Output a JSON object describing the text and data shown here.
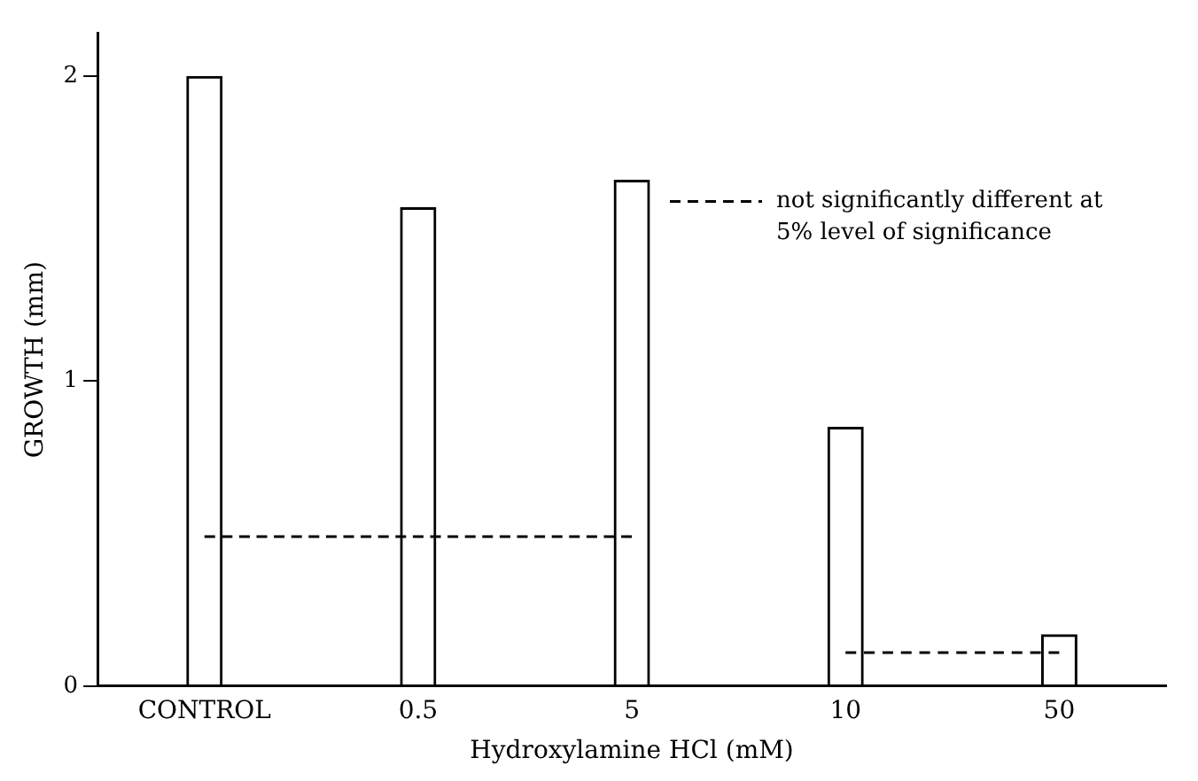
{
  "chart_data": {
    "type": "bar",
    "xlabel": "Hydroxylamine HCl (mM)",
    "ylabel": "GROWTH (mm)",
    "categories": [
      "CONTROL",
      "0.5",
      "5",
      "10",
      "50"
    ],
    "series": [
      {
        "color": "#000000",
        "values": [
          2.0,
          1.57,
          1.66,
          0.85,
          0.17
        ]
      },
      {
        "type": "line",
        "name": "not significantly different at 5% level of significance",
        "color": "#000000",
        "line_style": "dashed",
        "values": [
          0.49,
          0.49,
          0.49,
          null,
          null
        ]
      },
      {
        "type": "line",
        "color": "#000000",
        "line_style": "dashed",
        "values": [
          null,
          null,
          null,
          0.11,
          0.11
        ]
      }
    ],
    "ylim": [
      0,
      2.14
    ],
    "yticks": [
      0,
      1,
      2
    ],
    "grid": false,
    "legend": "top right",
    "marker": "none"
  }
}
